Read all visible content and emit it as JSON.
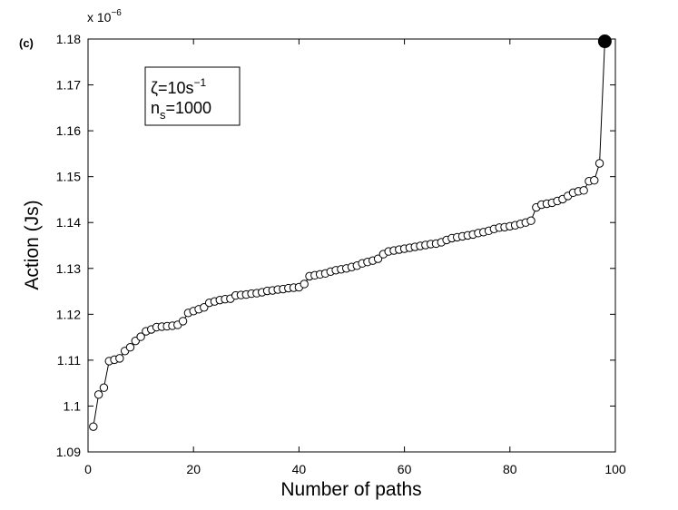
{
  "chart_data": {
    "type": "line",
    "panel_label": "(c)",
    "xlabel": "Number of paths",
    "ylabel": "Action (Js)",
    "y_multiplier": "x 10",
    "y_multiplier_exp": "−6",
    "xlim": [
      0,
      100
    ],
    "ylim": [
      1.09,
      1.18
    ],
    "xticks": [
      0,
      20,
      40,
      60,
      80,
      100
    ],
    "yticks": [
      1.09,
      1.1,
      1.11,
      1.12,
      1.13,
      1.14,
      1.15,
      1.16,
      1.17,
      1.18
    ],
    "ytick_labels": [
      "1.09",
      "1.1",
      "1.11",
      "1.12",
      "1.13",
      "1.14",
      "1.15",
      "1.16",
      "1.17",
      "1.18"
    ],
    "grid": false,
    "legend": {
      "placement": "top-left",
      "line1_sym": "ζ",
      "line1_text": "=10s",
      "line1_sup": "−1",
      "line2_sym": "n",
      "line2_sub": "s",
      "line2_text": "=1000"
    },
    "marker_color": "#000000",
    "highlight_point": {
      "x": 98,
      "y": 1.1795
    },
    "series": [
      {
        "x": [
          1,
          2,
          3,
          4,
          5,
          6,
          7,
          8,
          9,
          10,
          11,
          12,
          13,
          14,
          15,
          16,
          17,
          18,
          19,
          20,
          21,
          22,
          23,
          24,
          25,
          26,
          27,
          28,
          29,
          30,
          31,
          32,
          33,
          34,
          35,
          36,
          37,
          38,
          39,
          40,
          41,
          42,
          43,
          44,
          45,
          46,
          47,
          48,
          49,
          50,
          51,
          52,
          53,
          54,
          55,
          56,
          57,
          58,
          59,
          60,
          61,
          62,
          63,
          64,
          65,
          66,
          67,
          68,
          69,
          70,
          71,
          72,
          73,
          74,
          75,
          76,
          77,
          78,
          79,
          80,
          81,
          82,
          83,
          84,
          85,
          86,
          87,
          88,
          89,
          90,
          91,
          92,
          93,
          94,
          95,
          96,
          97,
          98
        ],
        "values": [
          1.0955,
          1.1025,
          1.104,
          1.1098,
          1.1101,
          1.1104,
          1.112,
          1.1128,
          1.1142,
          1.1151,
          1.1163,
          1.1167,
          1.1172,
          1.1173,
          1.1174,
          1.1175,
          1.1177,
          1.1185,
          1.1203,
          1.1207,
          1.1211,
          1.1215,
          1.1225,
          1.1228,
          1.1231,
          1.1233,
          1.1234,
          1.1241,
          1.1242,
          1.1243,
          1.1245,
          1.1246,
          1.1248,
          1.1251,
          1.1252,
          1.1254,
          1.1255,
          1.1257,
          1.1258,
          1.1259,
          1.1266,
          1.1283,
          1.1285,
          1.1287,
          1.1289,
          1.1293,
          1.1296,
          1.1298,
          1.13,
          1.1303,
          1.1306,
          1.1311,
          1.1314,
          1.1317,
          1.1321,
          1.1331,
          1.1337,
          1.1339,
          1.1341,
          1.1343,
          1.1345,
          1.1347,
          1.1349,
          1.1351,
          1.1353,
          1.1354,
          1.1357,
          1.1362,
          1.1366,
          1.1368,
          1.137,
          1.1372,
          1.1374,
          1.1377,
          1.1379,
          1.1382,
          1.1386,
          1.1389,
          1.139,
          1.1392,
          1.1394,
          1.1397,
          1.14,
          1.1404,
          1.1433,
          1.1439,
          1.1441,
          1.1443,
          1.1447,
          1.1451,
          1.1458,
          1.1465,
          1.1468,
          1.147,
          1.149,
          1.1492,
          1.1529,
          1.1795
        ]
      }
    ]
  }
}
